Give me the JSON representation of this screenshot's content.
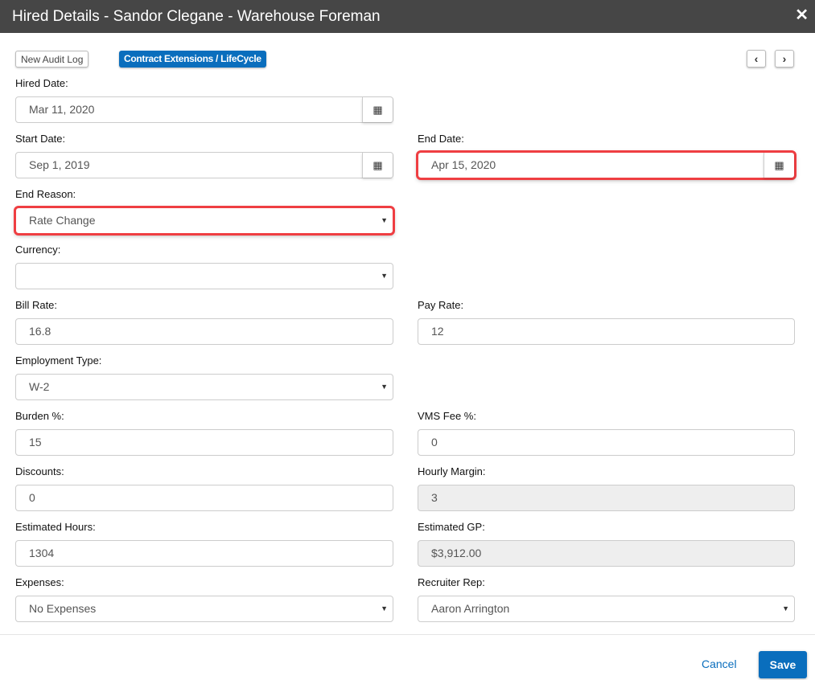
{
  "header": {
    "title": "Hired Details - Sandor Clegane - Warehouse Foreman",
    "close_icon": "close-icon"
  },
  "toolbar": {
    "audit_label": "New Audit Log",
    "extensions_label": "Contract Extensions / LifeCycle",
    "prev_icon": "chevron-left-icon",
    "next_icon": "chevron-right-icon"
  },
  "accent": "#0a6ebd",
  "highlight": "#ef3e42",
  "fields": [
    {
      "label": "Hired Date:",
      "value": "Mar 11, 2020",
      "type": "date"
    },
    {
      "label": "Start Date:",
      "value": "Sep 1, 2019",
      "type": "date"
    },
    {
      "label": "End Date:",
      "value": "Apr 15, 2020",
      "type": "date",
      "highlighted": true
    },
    {
      "label": "End Reason:",
      "value": "Rate Change",
      "type": "select",
      "highlighted": true
    },
    {
      "label": "Currency:",
      "value": "",
      "type": "select"
    },
    {
      "label": "Bill Rate:",
      "value": "16.8",
      "type": "text"
    },
    {
      "label": "Pay Rate:",
      "value": "12",
      "type": "text"
    },
    {
      "label": "Employment Type:",
      "value": "W-2",
      "type": "select"
    },
    {
      "label": "Burden %:",
      "value": "15",
      "type": "text"
    },
    {
      "label": "VMS Fee %:",
      "value": "0",
      "type": "text"
    },
    {
      "label": "Discounts:",
      "value": "0",
      "type": "text"
    },
    {
      "label": "Hourly Margin:",
      "value": "3",
      "type": "readonly"
    },
    {
      "label": "Estimated Hours:",
      "value": "1304",
      "type": "text"
    },
    {
      "label": "Estimated GP:",
      "value": "$3,912.00",
      "type": "readonly"
    },
    {
      "label": "Expenses:",
      "value": "No Expenses",
      "type": "select"
    },
    {
      "label": "Recruiter Rep:",
      "value": "Aaron Arrington",
      "type": "select"
    }
  ],
  "footer": {
    "cancel_label": "Cancel",
    "save_label": "Save"
  }
}
